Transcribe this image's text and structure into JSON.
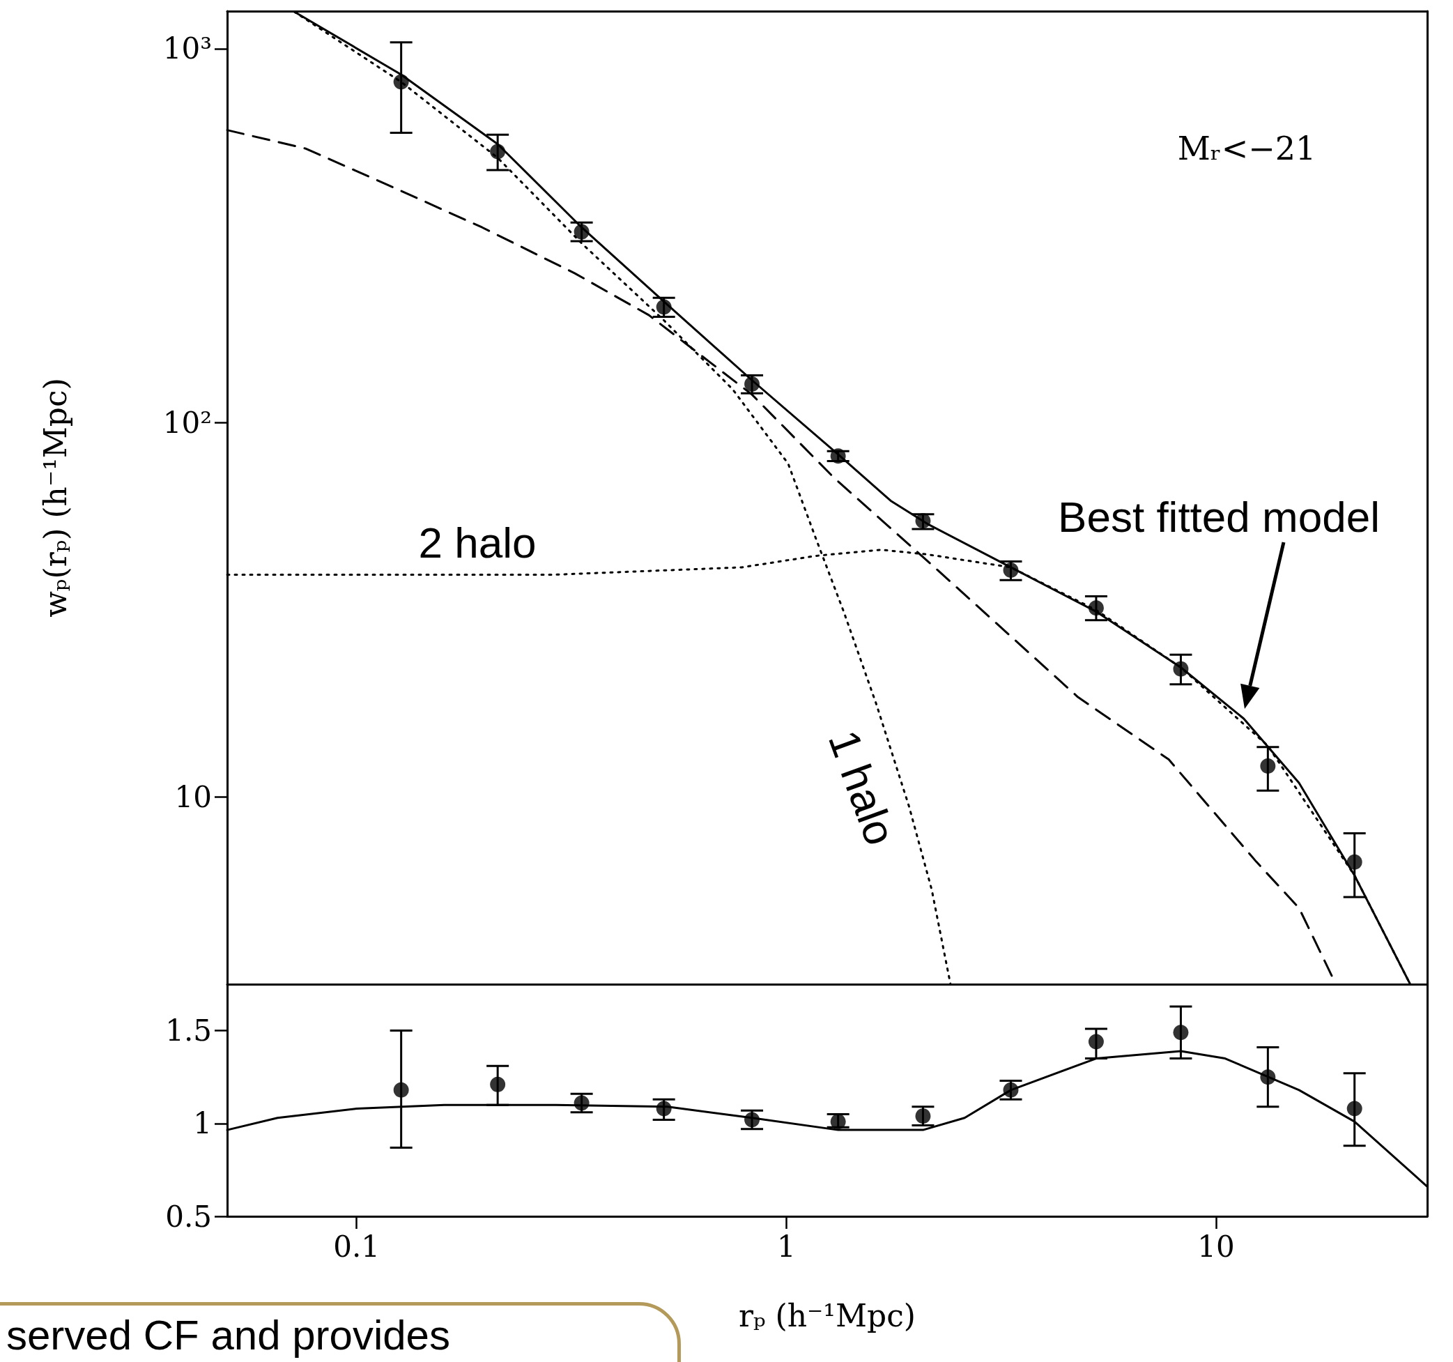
{
  "chart_data": [
    {
      "type": "scatter",
      "ylabel": "wₚ(rₚ) (h⁻¹Mpc)",
      "log": "xy",
      "xlim": [
        0.05,
        31
      ],
      "ylim": [
        3.16,
        1260
      ],
      "tick_labels": "y",
      "xticks": [
        0.1,
        1,
        10
      ],
      "yticks": [
        10,
        {
          "value": 100,
          "label": "10²"
        },
        {
          "value": 1000,
          "label": "10³"
        }
      ],
      "annotations": [
        "Mᵣ<−21",
        "2 halo",
        "1 halo",
        "Best fitted model"
      ],
      "series": [
        {
          "marker": "circle",
          "color": "#000000",
          "x": [
            0.127,
            0.213,
            0.334,
            0.519,
            0.832,
            1.32,
            2.08,
            3.33,
            5.26,
            8.28,
            13.2,
            21.0
          ],
          "values": [
            815,
            531,
            324,
            204,
            127,
            81.5,
            54.7,
            40.4,
            32.0,
            22.0,
            12.1,
            6.7
          ],
          "errors": [
            [
              596,
              1040
            ],
            [
              474,
              589
            ],
            [
              306,
              343
            ],
            [
              192,
              216
            ],
            [
              120,
              134
            ],
            [
              79,
              84
            ],
            [
              52,
              57
            ],
            [
              38,
              42.6
            ],
            [
              29.7,
              34.4
            ],
            [
              20,
              24
            ],
            [
              10.4,
              13.6
            ],
            [
              5.4,
              8.0
            ]
          ]
        },
        {
          "type": "line",
          "marker": "none",
          "line_style": "solid",
          "color": "#000000",
          "x": [
            0.0716,
            0.127,
            0.213,
            0.334,
            0.519,
            0.832,
            1.32,
            1.75,
            2.13,
            3.33,
            5.26,
            8.28,
            11.6,
            15.6,
            21.0,
            28.3
          ],
          "values": [
            1256,
            853,
            556,
            333,
            211,
            130,
            82.4,
            61.9,
            53.7,
            41.1,
            31.3,
            22.2,
            16.2,
            10.9,
            6.17,
            3.16
          ]
        },
        {
          "type": "line",
          "marker": "none",
          "line_style": "dashed",
          "color": "#000000",
          "x": [
            0.05,
            0.0761,
            0.119,
            0.196,
            0.322,
            0.479,
            0.832,
            1.29,
            2.25,
            4.77,
            7.76,
            12.4,
            15.6,
            19.0
          ],
          "values": [
            606,
            541,
            431,
            333,
            251,
            194,
            119,
            71.4,
            40.4,
            18.5,
            12.6,
            6.72,
            5.05,
            3.16
          ]
        },
        {
          "type": "line",
          "marker": "none",
          "line_style": "dotted",
          "color": "#000000",
          "x": [
            0.0716,
            0.127,
            0.213,
            0.334,
            0.519,
            0.75,
            1.01,
            1.17,
            1.36,
            1.62,
            1.93,
            2.18,
            2.41
          ],
          "values": [
            1256,
            815,
            511,
            302,
            188,
            123,
            77.8,
            49.3,
            31.3,
            17.7,
            9.44,
            5.65,
            3.16
          ]
        },
        {
          "type": "line",
          "marker": "none",
          "line_style": "dotted",
          "color": "#000000",
          "x": [
            0.05,
            0.291,
            0.788,
            1.17,
            1.66,
            2.13,
            3.33,
            5.26,
            8.28,
            13.2,
            21.0,
            28.3
          ],
          "values": [
            39.3,
            39.3,
            41.1,
            44.1,
            45.8,
            44.5,
            41.1,
            31.6,
            22.2,
            13.7,
            6.17,
            3.16
          ]
        }
      ]
    },
    {
      "type": "scatter",
      "xlabel": "rₚ (h⁻¹Mpc)",
      "log": "x",
      "xlim": [
        0.05,
        31
      ],
      "ylim": [
        0.5,
        1.75
      ],
      "xticks": [
        0.1,
        1,
        10
      ],
      "yticks": [
        0.5,
        1,
        1.5
      ],
      "annotations": [
        "served CF and provides"
      ],
      "series": [
        {
          "marker": "circle",
          "color": "#000000",
          "x": [
            0.127,
            0.213,
            0.334,
            0.519,
            0.832,
            1.32,
            2.08,
            3.33,
            5.26,
            8.28,
            13.2,
            21.0
          ],
          "values": [
            1.18,
            1.21,
            1.11,
            1.08,
            1.02,
            1.01,
            1.04,
            1.18,
            1.44,
            1.49,
            1.25,
            1.08
          ],
          "errors": [
            [
              0.87,
              1.5
            ],
            [
              1.1,
              1.31
            ],
            [
              1.06,
              1.16
            ],
            [
              1.02,
              1.13
            ],
            [
              0.97,
              1.07
            ],
            [
              0.98,
              1.05
            ],
            [
              0.99,
              1.09
            ],
            [
              1.13,
              1.23
            ],
            [
              1.35,
              1.51
            ],
            [
              1.35,
              1.63
            ],
            [
              1.09,
              1.41
            ],
            [
              0.88,
              1.27
            ]
          ]
        },
        {
          "type": "line",
          "marker": "none",
          "line_style": "solid",
          "color": "#000000",
          "x": [
            0.05,
            0.0655,
            0.1,
            0.16,
            0.291,
            0.529,
            0.832,
            1.32,
            2.08,
            2.6,
            3.33,
            5.26,
            8.28,
            10.5,
            15.6,
            21.0,
            31
          ],
          "values": [
            0.965,
            1.03,
            1.08,
            1.1,
            1.1,
            1.09,
            1.03,
            0.965,
            0.965,
            1.03,
            1.18,
            1.35,
            1.39,
            1.35,
            1.18,
            1.01,
            0.66
          ]
        }
      ]
    }
  ]
}
